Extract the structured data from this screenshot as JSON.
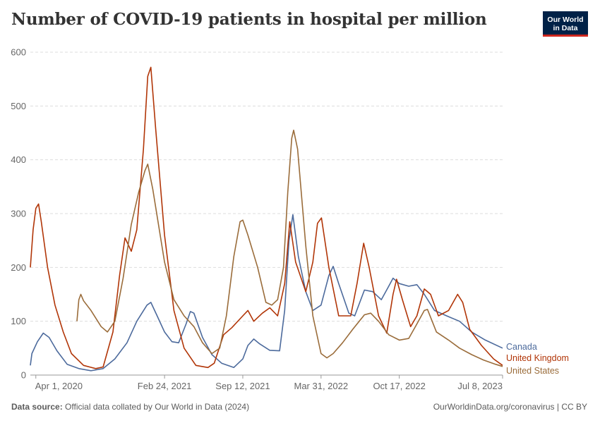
{
  "header": {
    "title": "Number of COVID-19 patients in hospital per million",
    "logo_line1": "Our World",
    "logo_line2": "in Data"
  },
  "footer": {
    "source_label": "Data source:",
    "source_text": "Official data collated by Our World in Data (2024)",
    "url": "OurWorldinData.org/coronavirus | CC BY"
  },
  "colors": {
    "canada": "#4c6a9c",
    "united_kingdom": "#b13507",
    "united_states": "#9a6c3a",
    "grid": "#dddddd"
  },
  "chart_data": {
    "type": "line",
    "title": "Number of COVID-19 patients in hospital per million",
    "xlabel": "",
    "ylabel": "",
    "x_domain": [
      "2020-03-18",
      "2023-07-08"
    ],
    "ylim": [
      0,
      600
    ],
    "yticks": [
      0,
      100,
      200,
      300,
      400,
      500,
      600
    ],
    "xticks": [
      {
        "date": "2020-04-01",
        "label": "Apr 1, 2020"
      },
      {
        "date": "2021-02-24",
        "label": "Feb 24, 2021"
      },
      {
        "date": "2021-09-12",
        "label": "Sep 12, 2021"
      },
      {
        "date": "2022-03-31",
        "label": "Mar 31, 2022"
      },
      {
        "date": "2022-10-17",
        "label": "Oct 17, 2022"
      },
      {
        "date": "2023-07-08",
        "label": "Jul 8, 2023"
      }
    ],
    "grid": true,
    "series": [
      {
        "name": "Canada",
        "color": "#4c6a9c",
        "points": [
          [
            "2020-03-18",
            18
          ],
          [
            "2020-03-22",
            40
          ],
          [
            "2020-04-05",
            62
          ],
          [
            "2020-04-20",
            78
          ],
          [
            "2020-05-05",
            70
          ],
          [
            "2020-05-25",
            45
          ],
          [
            "2020-06-20",
            20
          ],
          [
            "2020-07-20",
            12
          ],
          [
            "2020-08-20",
            8
          ],
          [
            "2020-09-20",
            12
          ],
          [
            "2020-10-20",
            30
          ],
          [
            "2020-11-20",
            60
          ],
          [
            "2020-12-15",
            100
          ],
          [
            "2021-01-10",
            130
          ],
          [
            "2021-01-20",
            135
          ],
          [
            "2021-02-05",
            110
          ],
          [
            "2021-02-24",
            80
          ],
          [
            "2021-03-15",
            62
          ],
          [
            "2021-04-01",
            60
          ],
          [
            "2021-04-20",
            95
          ],
          [
            "2021-05-01",
            118
          ],
          [
            "2021-05-10",
            115
          ],
          [
            "2021-06-01",
            70
          ],
          [
            "2021-06-25",
            38
          ],
          [
            "2021-07-20",
            22
          ],
          [
            "2021-08-20",
            14
          ],
          [
            "2021-09-12",
            30
          ],
          [
            "2021-09-25",
            55
          ],
          [
            "2021-10-10",
            67
          ],
          [
            "2021-10-25",
            58
          ],
          [
            "2021-11-20",
            46
          ],
          [
            "2021-12-15",
            45
          ],
          [
            "2021-12-28",
            120
          ],
          [
            "2022-01-08",
            250
          ],
          [
            "2022-01-18",
            298
          ],
          [
            "2022-02-01",
            220
          ],
          [
            "2022-02-20",
            155
          ],
          [
            "2022-03-10",
            120
          ],
          [
            "2022-03-31",
            130
          ],
          [
            "2022-04-20",
            185
          ],
          [
            "2022-05-01",
            202
          ],
          [
            "2022-05-15",
            170
          ],
          [
            "2022-06-10",
            115
          ],
          [
            "2022-06-25",
            110
          ],
          [
            "2022-07-20",
            158
          ],
          [
            "2022-08-10",
            155
          ],
          [
            "2022-09-01",
            140
          ],
          [
            "2022-09-20",
            165
          ],
          [
            "2022-10-01",
            180
          ],
          [
            "2022-10-17",
            170
          ],
          [
            "2022-11-10",
            165
          ],
          [
            "2022-12-01",
            168
          ],
          [
            "2022-12-20",
            150
          ],
          [
            "2023-01-15",
            120
          ],
          [
            "2023-02-15",
            110
          ],
          [
            "2023-03-20",
            100
          ],
          [
            "2023-04-20",
            80
          ],
          [
            "2023-05-25",
            65
          ],
          [
            "2023-07-08",
            50
          ]
        ]
      },
      {
        "name": "United Kingdom",
        "color": "#b13507",
        "points": [
          [
            "2020-03-18",
            200
          ],
          [
            "2020-03-25",
            270
          ],
          [
            "2020-04-01",
            310
          ],
          [
            "2020-04-08",
            318
          ],
          [
            "2020-04-15",
            285
          ],
          [
            "2020-05-01",
            200
          ],
          [
            "2020-05-20",
            130
          ],
          [
            "2020-06-10",
            80
          ],
          [
            "2020-07-01",
            40
          ],
          [
            "2020-08-01",
            18
          ],
          [
            "2020-09-01",
            12
          ],
          [
            "2020-09-20",
            15
          ],
          [
            "2020-10-15",
            80
          ],
          [
            "2020-11-01",
            185
          ],
          [
            "2020-11-15",
            255
          ],
          [
            "2020-12-01",
            230
          ],
          [
            "2020-12-15",
            270
          ],
          [
            "2021-01-01",
            420
          ],
          [
            "2021-01-12",
            555
          ],
          [
            "2021-01-20",
            572
          ],
          [
            "2021-02-01",
            460
          ],
          [
            "2021-02-24",
            260
          ],
          [
            "2021-03-20",
            120
          ],
          [
            "2021-04-15",
            50
          ],
          [
            "2021-05-15",
            18
          ],
          [
            "2021-06-15",
            14
          ],
          [
            "2021-07-01",
            22
          ],
          [
            "2021-07-25",
            75
          ],
          [
            "2021-08-15",
            88
          ],
          [
            "2021-09-12",
            110
          ],
          [
            "2021-09-25",
            120
          ],
          [
            "2021-10-10",
            100
          ],
          [
            "2021-11-01",
            115
          ],
          [
            "2021-11-20",
            125
          ],
          [
            "2021-12-10",
            110
          ],
          [
            "2021-12-28",
            170
          ],
          [
            "2022-01-10",
            285
          ],
          [
            "2022-01-25",
            210
          ],
          [
            "2022-02-20",
            155
          ],
          [
            "2022-03-10",
            210
          ],
          [
            "2022-03-22",
            282
          ],
          [
            "2022-04-01",
            292
          ],
          [
            "2022-04-20",
            200
          ],
          [
            "2022-05-15",
            110
          ],
          [
            "2022-06-15",
            110
          ],
          [
            "2022-07-01",
            170
          ],
          [
            "2022-07-18",
            245
          ],
          [
            "2022-08-01",
            200
          ],
          [
            "2022-08-25",
            110
          ],
          [
            "2022-09-15",
            78
          ],
          [
            "2022-10-01",
            150
          ],
          [
            "2022-10-10",
            178
          ],
          [
            "2022-10-25",
            140
          ],
          [
            "2022-11-15",
            90
          ],
          [
            "2022-12-01",
            110
          ],
          [
            "2022-12-20",
            160
          ],
          [
            "2023-01-05",
            150
          ],
          [
            "2023-01-25",
            110
          ],
          [
            "2023-02-20",
            120
          ],
          [
            "2023-03-15",
            150
          ],
          [
            "2023-03-28",
            135
          ],
          [
            "2023-04-15",
            85
          ],
          [
            "2023-05-15",
            55
          ],
          [
            "2023-06-15",
            30
          ],
          [
            "2023-07-08",
            18
          ]
        ]
      },
      {
        "name": "United States",
        "color": "#9a6c3a",
        "points": [
          [
            "2020-07-15",
            100
          ],
          [
            "2020-07-20",
            140
          ],
          [
            "2020-07-25",
            150
          ],
          [
            "2020-08-01",
            138
          ],
          [
            "2020-08-20",
            120
          ],
          [
            "2020-09-15",
            90
          ],
          [
            "2020-10-01",
            80
          ],
          [
            "2020-10-20",
            100
          ],
          [
            "2020-11-10",
            180
          ],
          [
            "2020-12-01",
            280
          ],
          [
            "2020-12-20",
            340
          ],
          [
            "2021-01-05",
            380
          ],
          [
            "2021-01-12",
            392
          ],
          [
            "2021-01-25",
            345
          ],
          [
            "2021-02-24",
            210
          ],
          [
            "2021-03-20",
            140
          ],
          [
            "2021-04-15",
            110
          ],
          [
            "2021-05-10",
            90
          ],
          [
            "2021-06-01",
            60
          ],
          [
            "2021-06-25",
            40
          ],
          [
            "2021-07-15",
            50
          ],
          [
            "2021-08-01",
            110
          ],
          [
            "2021-08-20",
            220
          ],
          [
            "2021-09-05",
            285
          ],
          [
            "2021-09-12",
            288
          ],
          [
            "2021-09-25",
            260
          ],
          [
            "2021-10-20",
            200
          ],
          [
            "2021-11-10",
            135
          ],
          [
            "2021-11-25",
            130
          ],
          [
            "2021-12-10",
            140
          ],
          [
            "2021-12-25",
            200
          ],
          [
            "2022-01-05",
            340
          ],
          [
            "2022-01-15",
            440
          ],
          [
            "2022-01-20",
            455
          ],
          [
            "2022-01-30",
            420
          ],
          [
            "2022-02-20",
            240
          ],
          [
            "2022-03-10",
            110
          ],
          [
            "2022-03-31",
            40
          ],
          [
            "2022-04-15",
            32
          ],
          [
            "2022-05-01",
            40
          ],
          [
            "2022-05-25",
            60
          ],
          [
            "2022-06-20",
            85
          ],
          [
            "2022-07-20",
            112
          ],
          [
            "2022-08-05",
            115
          ],
          [
            "2022-08-25",
            100
          ],
          [
            "2022-09-20",
            75
          ],
          [
            "2022-10-17",
            65
          ],
          [
            "2022-11-10",
            68
          ],
          [
            "2022-12-01",
            95
          ],
          [
            "2022-12-20",
            120
          ],
          [
            "2022-12-28",
            122
          ],
          [
            "2023-01-20",
            80
          ],
          [
            "2023-02-20",
            65
          ],
          [
            "2023-03-20",
            50
          ],
          [
            "2023-04-20",
            38
          ],
          [
            "2023-05-20",
            28
          ],
          [
            "2023-06-20",
            20
          ],
          [
            "2023-07-08",
            16
          ]
        ]
      }
    ]
  }
}
